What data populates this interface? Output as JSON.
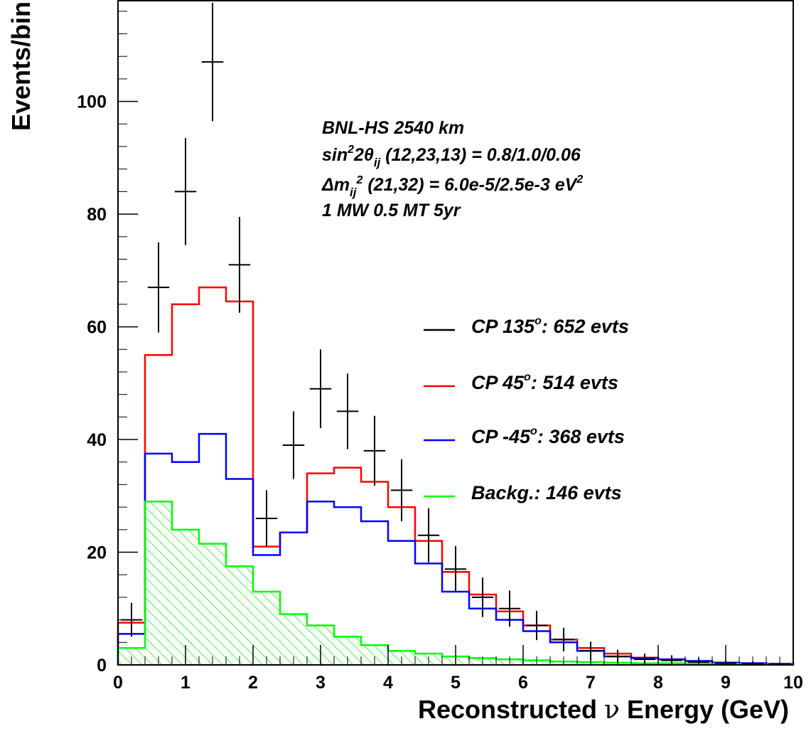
{
  "chart_data": {
    "type": "histogram",
    "xlabel": {
      "prefix": "Reconstructed ",
      "symbol": "ν",
      "suffix": " Energy (GeV)"
    },
    "ylabel": "Events/bin",
    "xlim": [
      0,
      10
    ],
    "ylim": [
      0,
      118
    ],
    "x_ticks": [
      "0",
      "1",
      "2",
      "3",
      "4",
      "5",
      "6",
      "7",
      "8",
      "9",
      "10"
    ],
    "y_ticks": [
      "0",
      "20",
      "40",
      "60",
      "80",
      "100"
    ],
    "bin_edges": [
      0,
      0.4,
      0.8,
      1.2,
      1.6,
      2.0,
      2.4,
      2.8,
      3.2,
      3.6,
      4.0,
      4.4,
      4.8,
      5.2,
      5.6,
      6.0,
      6.4,
      6.8,
      7.2,
      7.6,
      8.0,
      8.4,
      8.8,
      9.2,
      9.6,
      10.0
    ],
    "data_points": {
      "name": "CP 135°",
      "x": [
        0.2,
        0.6,
        1.0,
        1.4,
        1.8,
        2.2,
        2.6,
        3.0,
        3.4,
        3.8,
        4.2,
        4.6,
        5.0,
        5.4,
        5.8,
        6.2,
        6.6,
        7.0,
        7.4,
        7.8,
        8.2,
        8.6,
        9.0,
        9.4,
        9.8
      ],
      "y": [
        8,
        67,
        84,
        107,
        71,
        26,
        39,
        49,
        45,
        38,
        31,
        23,
        17,
        12,
        10,
        7,
        4.5,
        2.5,
        1.5,
        1,
        0.8,
        0.5,
        0.3,
        0.2,
        0.1
      ],
      "err": [
        3,
        8,
        9.5,
        10.5,
        8.5,
        5,
        6,
        7,
        6.7,
        6.2,
        5.5,
        4.8,
        4.1,
        3.5,
        3.2,
        2.6,
        2.1,
        1.6,
        1.2,
        1,
        0.9,
        0.7,
        0.5,
        0.4,
        0.3
      ]
    },
    "series": [
      {
        "name": "CP 45°",
        "color": "#ff0000",
        "values": [
          7.5,
          55,
          64,
          67,
          64.5,
          21,
          23.5,
          34,
          35,
          32.5,
          28,
          22,
          16.5,
          12.5,
          9.5,
          7,
          4.5,
          3,
          2,
          1.3,
          1,
          0.7,
          0.4,
          0.3,
          0.2
        ]
      },
      {
        "name": "CP -45°",
        "color": "#0000ff",
        "values": [
          5.5,
          37.5,
          36,
          41,
          33,
          19.5,
          23.5,
          29,
          28,
          25.5,
          22,
          18,
          13,
          10,
          8,
          6,
          4,
          2.5,
          1.5,
          1.2,
          1,
          0.7,
          0.4,
          0.3,
          0.2
        ]
      },
      {
        "name": "Backg.",
        "color": "#00ff00",
        "values": [
          3,
          29,
          24,
          21.5,
          17.5,
          13,
          9,
          7,
          5,
          3.5,
          2.5,
          2,
          1.5,
          1.2,
          1,
          0.8,
          0.6,
          0.5,
          0.4,
          0.3,
          0.3,
          0.2,
          0.2,
          0.1,
          0.1
        ]
      }
    ],
    "info_lines": {
      "line1": "BNL-HS  2540 km",
      "line2": {
        "t1": "sin",
        "sup1": "2",
        "t2": "2θ",
        "sub1": "ij",
        "t3": " (12,23,13) = 0.8/1.0/0.06"
      },
      "line3": {
        "t1": "Δm",
        "sub1": "ij",
        "sup1": "2",
        "t2": " (21,32) = 6.0e-5/2.5e-3 eV",
        "sup2": "2"
      },
      "line4": "1 MW 0.5 MT 5yr"
    },
    "legend": [
      {
        "pre": "CP 135",
        "sup": "o",
        "post": ": 652 evts",
        "color": "#000000"
      },
      {
        "pre": "CP 45",
        "sup": "o",
        "post": ": 514  evts",
        "color": "#ff0000"
      },
      {
        "pre": "CP -45",
        "sup": "o",
        "post": ": 368  evts",
        "color": "#0000ff"
      },
      {
        "pre": "Backg.: 146 evts",
        "sup": "",
        "post": "",
        "color": "#00ff00"
      }
    ]
  }
}
